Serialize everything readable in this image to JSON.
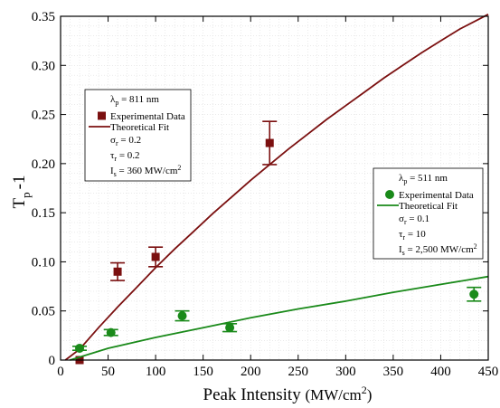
{
  "chart_data": {
    "type": "scatter",
    "xlabel": "Peak Intensity",
    "xlabel_units_base": "(MW/cm",
    "xlabel_units_sup": "2",
    "xlabel_units_end": ")",
    "ylabel_main": "T",
    "ylabel_sub": "p",
    "ylabel_end": "-1",
    "xlim": [
      0,
      450
    ],
    "ylim": [
      0,
      0.35
    ],
    "x_ticks": [
      0,
      50,
      100,
      150,
      200,
      250,
      300,
      350,
      400,
      450
    ],
    "y_ticks": [
      0,
      0.05,
      0.1,
      0.15,
      0.2,
      0.25,
      0.3,
      0.35
    ],
    "x_tick_labels": [
      "0",
      "50",
      "100",
      "150",
      "200",
      "250",
      "300",
      "350",
      "400",
      "450"
    ],
    "y_tick_labels": [
      "0",
      "0.05",
      "0.10",
      "0.15",
      "0.20",
      "0.25",
      "0.30",
      "0.35"
    ],
    "grid": true,
    "series": [
      {
        "name": "Experimental Data",
        "group": "811nm",
        "color": "#7b1010",
        "marker": "square",
        "points": [
          {
            "x": 20,
            "y": 0.0,
            "err": 0.0
          },
          {
            "x": 60,
            "y": 0.09,
            "err": 0.009
          },
          {
            "x": 100,
            "y": 0.105,
            "err": 0.01
          },
          {
            "x": 220,
            "y": 0.221,
            "err": 0.022
          }
        ]
      },
      {
        "name": "Theoretical Fit",
        "group": "811nm",
        "color": "#7b1010",
        "kind": "line",
        "x": [
          5,
          20,
          40,
          60,
          80,
          100,
          120,
          140,
          160,
          180,
          200,
          220,
          240,
          260,
          280,
          300,
          320,
          340,
          360,
          380,
          400,
          420,
          440,
          450
        ],
        "y": [
          0.0,
          0.011,
          0.033,
          0.054,
          0.074,
          0.094,
          0.113,
          0.131,
          0.149,
          0.166,
          0.183,
          0.199,
          0.215,
          0.23,
          0.245,
          0.259,
          0.273,
          0.287,
          0.3,
          0.313,
          0.325,
          0.337,
          0.347,
          0.352
        ]
      },
      {
        "name": "Experimental Data",
        "group": "511nm",
        "color": "#1a8a1a",
        "marker": "circle",
        "points": [
          {
            "x": 20,
            "y": 0.012,
            "err": 0.002
          },
          {
            "x": 53,
            "y": 0.028,
            "err": 0.003
          },
          {
            "x": 128,
            "y": 0.045,
            "err": 0.005
          },
          {
            "x": 178,
            "y": 0.033,
            "err": 0.004
          },
          {
            "x": 435,
            "y": 0.067,
            "err": 0.007
          }
        ]
      },
      {
        "name": "Theoretical Fit",
        "group": "511nm",
        "color": "#1a8a1a",
        "kind": "line",
        "x": [
          10,
          50,
          100,
          150,
          200,
          250,
          300,
          350,
          400,
          450
        ],
        "y": [
          0.0,
          0.012,
          0.023,
          0.033,
          0.043,
          0.052,
          0.06,
          0.069,
          0.077,
          0.085
        ]
      }
    ],
    "legends": [
      {
        "id": "legend-811",
        "placement": "upper-left",
        "lambda_sym": "λ",
        "lambda_sub": "p",
        "lambda_value": " = 811 nm",
        "data_label": "Experimental Data",
        "fit_label": "Theoretical Fit",
        "params": [
          {
            "sym": "σ",
            "sub": "r",
            "value": " = 0.2"
          },
          {
            "sym": "τ",
            "sub": "r",
            "value": " = 0.2"
          },
          {
            "sym": "I",
            "sub": "s",
            "value": " = 360 MW/cm",
            "sup": "2"
          }
        ],
        "color": "#7b1010",
        "marker": "square"
      },
      {
        "id": "legend-511",
        "placement": "right",
        "lambda_sym": "λ",
        "lambda_sub": "p",
        "lambda_value": " = 511 nm",
        "data_label": "Experimental Data",
        "fit_label": "Theoretical Fit",
        "params": [
          {
            "sym": "σ",
            "sub": "r",
            "value": " = 0.1"
          },
          {
            "sym": "τ",
            "sub": "r",
            "value": " = 10"
          },
          {
            "sym": "I",
            "sub": "s",
            "value": " = 2,500 MW/cm",
            "sup": "2"
          }
        ],
        "color": "#1a8a1a",
        "marker": "circle"
      }
    ]
  }
}
